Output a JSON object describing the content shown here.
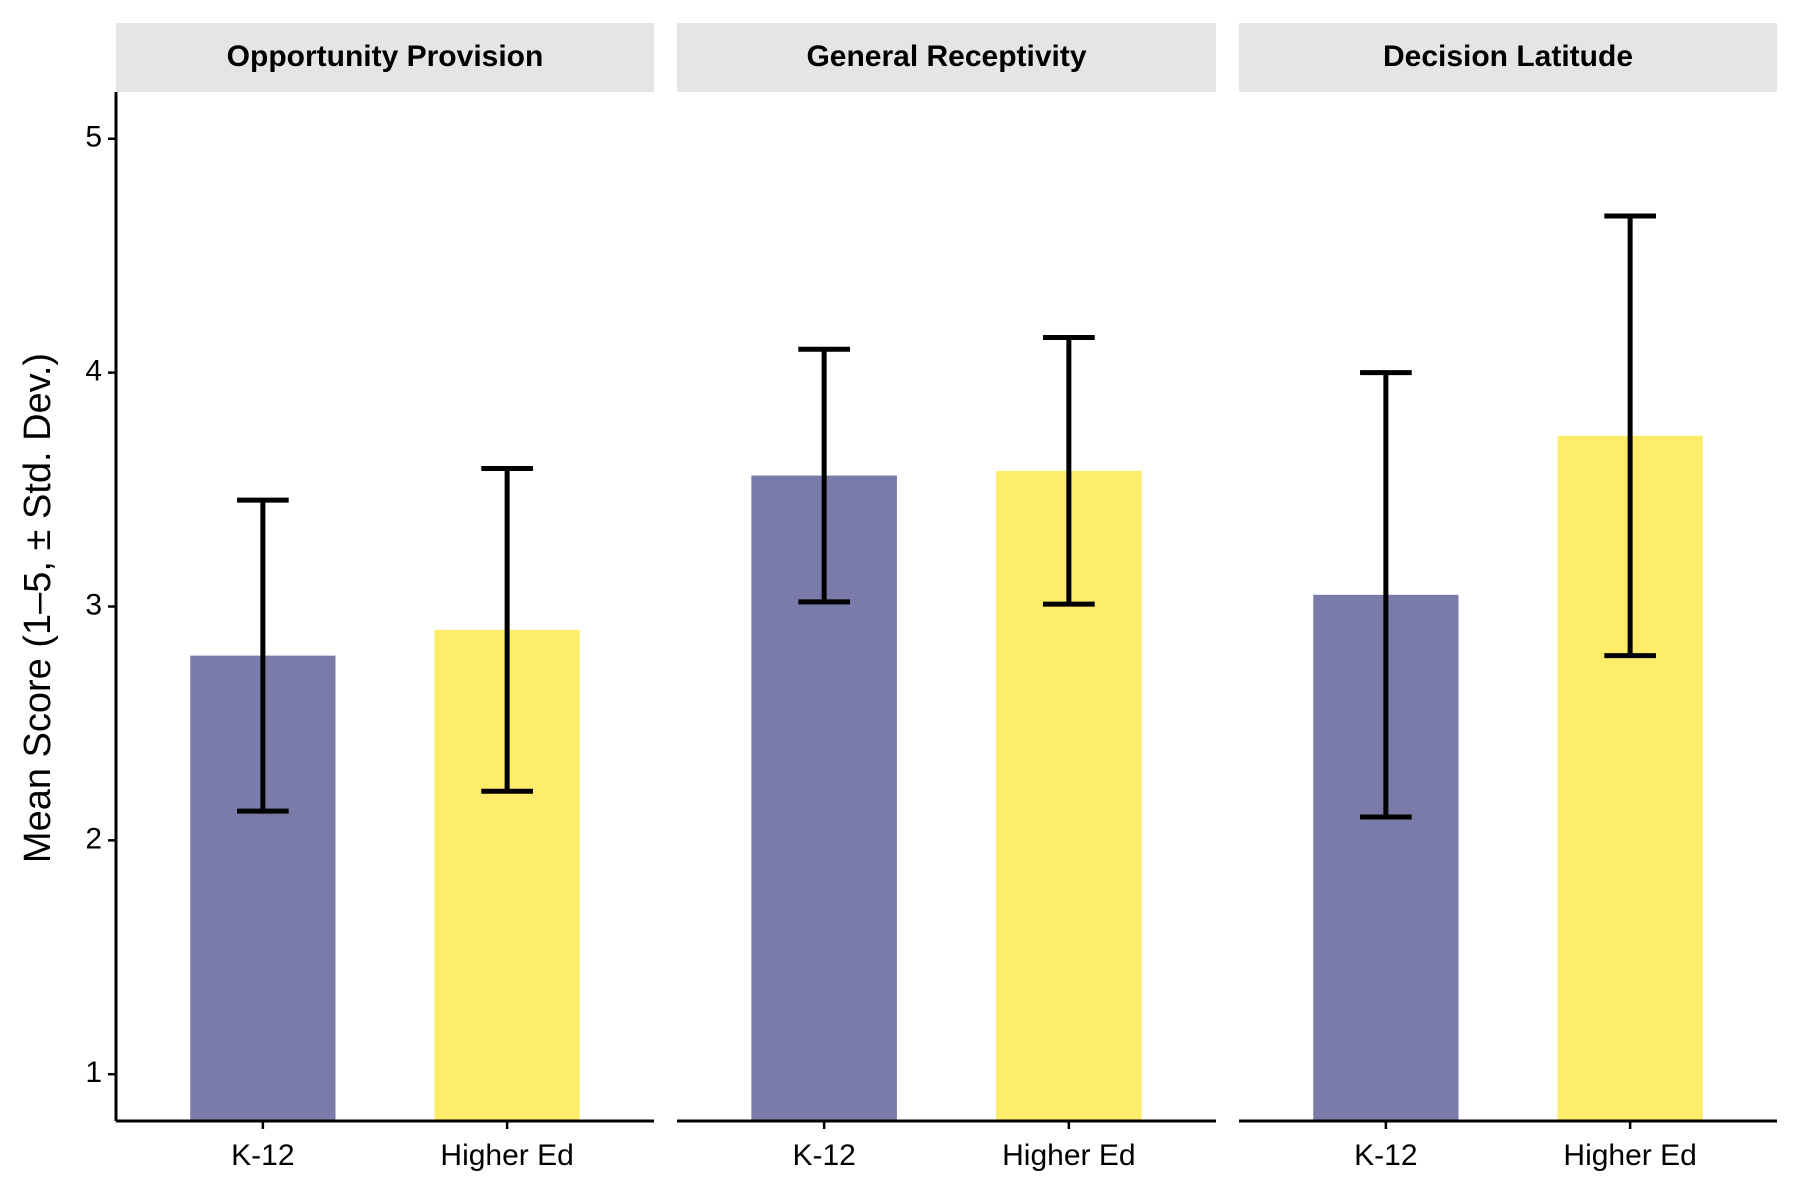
{
  "chart_data": [
    {
      "type": "bar",
      "title": "Opportunity Provision",
      "ylabel": "Mean Score (1–5, ± Std. Dev.)",
      "categories": [
        "K-12",
        "Higher Ed"
      ],
      "values": [
        2.79,
        2.9
      ],
      "errors": [
        0.665,
        0.69
      ],
      "colors": [
        "#7b7baa",
        "#fded6a"
      ],
      "ylim": [
        0.8,
        5.2
      ],
      "yticks": [
        1,
        2,
        3,
        4,
        5
      ]
    },
    {
      "type": "bar",
      "title": "General Receptivity",
      "categories": [
        "K-12",
        "Higher Ed"
      ],
      "values": [
        3.56,
        3.58
      ],
      "errors": [
        0.54,
        0.57
      ],
      "colors": [
        "#7b7baa",
        "#fded6a"
      ],
      "ylim": [
        0.8,
        5.2
      ]
    },
    {
      "type": "bar",
      "title": "Decision Latitude",
      "categories": [
        "K-12",
        "Higher Ed"
      ],
      "values": [
        3.05,
        3.73
      ],
      "errors": [
        0.95,
        0.94
      ],
      "colors": [
        "#7b7baa",
        "#fded6a"
      ],
      "ylim": [
        0.8,
        5.2
      ]
    }
  ]
}
